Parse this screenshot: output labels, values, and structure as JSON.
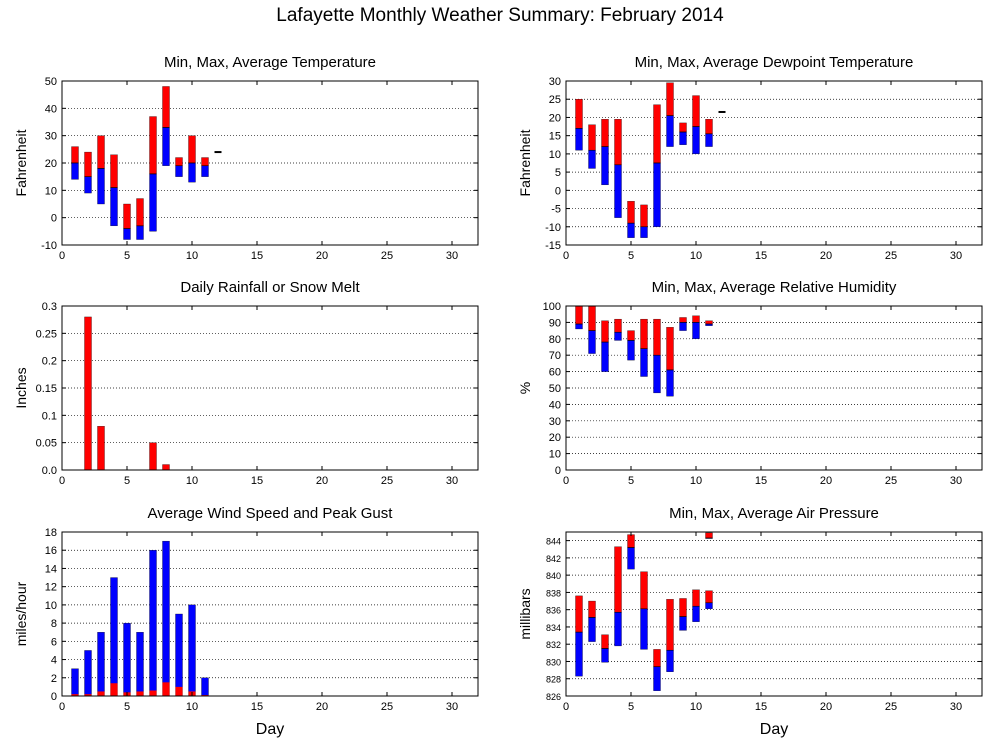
{
  "title": "Lafayette Monthly Weather Summary: February 2014",
  "colors": {
    "max_bar": "#ff0000",
    "min_bar": "#0000ff",
    "grid": "#000000"
  },
  "chart_data": [
    {
      "id": "temperature",
      "type": "bar",
      "title": "Min, Max, Average Temperature",
      "xlabel": "",
      "ylabel": "Fahrenheit",
      "xlim": [
        0,
        32
      ],
      "ylim": [
        -10,
        50
      ],
      "xticks": [
        0,
        5,
        10,
        15,
        20,
        25,
        30
      ],
      "yticks": [
        -10,
        0,
        10,
        20,
        30,
        40,
        50
      ],
      "grid": true,
      "days": [
        {
          "x": 1,
          "min": 14,
          "avg": 20,
          "max": 26
        },
        {
          "x": 2,
          "min": 9,
          "avg": 15,
          "max": 24
        },
        {
          "x": 3,
          "min": 5,
          "avg": 18,
          "max": 30
        },
        {
          "x": 4,
          "min": -3,
          "avg": 11,
          "max": 23
        },
        {
          "x": 5,
          "min": -8,
          "avg": -4,
          "max": 5
        },
        {
          "x": 6,
          "min": -8,
          "avg": -3,
          "max": 7
        },
        {
          "x": 7,
          "min": -5,
          "avg": 16,
          "max": 37
        },
        {
          "x": 8,
          "min": 19,
          "avg": 33,
          "max": 48
        },
        {
          "x": 9,
          "min": 15,
          "avg": 19,
          "max": 22
        },
        {
          "x": 10,
          "min": 13,
          "avg": 20,
          "max": 30
        },
        {
          "x": 11,
          "min": 15,
          "avg": 19,
          "max": 22
        },
        {
          "x": 12,
          "marker": 24
        }
      ]
    },
    {
      "id": "dewpoint",
      "type": "bar",
      "title": "Min, Max, Average Dewpoint Temperature",
      "xlabel": "",
      "ylabel": "Fahrenheit",
      "xlim": [
        0,
        32
      ],
      "ylim": [
        -15,
        30
      ],
      "xticks": [
        0,
        5,
        10,
        15,
        20,
        25,
        30
      ],
      "yticks": [
        -15,
        -10,
        -5,
        0,
        5,
        10,
        15,
        20,
        25,
        30
      ],
      "grid": true,
      "days": [
        {
          "x": 1,
          "min": 11,
          "avg": 17,
          "max": 25
        },
        {
          "x": 2,
          "min": 6,
          "avg": 11,
          "max": 18
        },
        {
          "x": 3,
          "min": 1.5,
          "avg": 12,
          "max": 19.5
        },
        {
          "x": 4,
          "min": -7.5,
          "avg": 7,
          "max": 19.5
        },
        {
          "x": 5,
          "min": -13,
          "avg": -9,
          "max": -3
        },
        {
          "x": 6,
          "min": -13,
          "avg": -10,
          "max": -4
        },
        {
          "x": 7,
          "min": -10,
          "avg": 7.5,
          "max": 23.5
        },
        {
          "x": 8,
          "min": 12,
          "avg": 20.5,
          "max": 29.5
        },
        {
          "x": 9,
          "min": 12.5,
          "avg": 16,
          "max": 18.5
        },
        {
          "x": 10,
          "min": 10,
          "avg": 17.5,
          "max": 26
        },
        {
          "x": 11,
          "min": 12,
          "avg": 15.5,
          "max": 19.5
        },
        {
          "x": 12,
          "marker": 21.5
        }
      ]
    },
    {
      "id": "rainfall",
      "type": "bar",
      "title": "Daily Rainfall or Snow Melt",
      "xlabel": "",
      "ylabel": "Inches",
      "xlim": [
        0,
        32
      ],
      "ylim": [
        0,
        0.3
      ],
      "xticks": [
        0,
        5,
        10,
        15,
        20,
        25,
        30
      ],
      "yticks": [
        0,
        0.05,
        0.1,
        0.15,
        0.2,
        0.25,
        0.3
      ],
      "ytick_labels": [
        "0.0",
        "0.05",
        "0.1",
        "0.15",
        "0.2",
        "0.25",
        "0.3"
      ],
      "grid": true,
      "values": [
        {
          "x": 2,
          "value": 0.28
        },
        {
          "x": 3,
          "value": 0.08
        },
        {
          "x": 7,
          "value": 0.05
        },
        {
          "x": 8,
          "value": 0.01
        }
      ]
    },
    {
      "id": "humidity",
      "type": "bar",
      "title": "Min, Max, Average Relative Humidity",
      "xlabel": "",
      "ylabel": "%",
      "xlim": [
        0,
        32
      ],
      "ylim": [
        0,
        100
      ],
      "xticks": [
        0,
        5,
        10,
        15,
        20,
        25,
        30
      ],
      "yticks": [
        0,
        10,
        20,
        30,
        40,
        50,
        60,
        70,
        80,
        90,
        100
      ],
      "grid": true,
      "days": [
        {
          "x": 1,
          "min": 86,
          "avg": 89,
          "max": 100
        },
        {
          "x": 2,
          "min": 71,
          "avg": 85,
          "max": 100
        },
        {
          "x": 3,
          "min": 60,
          "avg": 78,
          "max": 91
        },
        {
          "x": 4,
          "min": 79,
          "avg": 84,
          "max": 92
        },
        {
          "x": 5,
          "min": 67,
          "avg": 79,
          "max": 85
        },
        {
          "x": 6,
          "min": 57,
          "avg": 74,
          "max": 92
        },
        {
          "x": 7,
          "min": 47,
          "avg": 70,
          "max": 92
        },
        {
          "x": 8,
          "min": 45,
          "avg": 61,
          "max": 87
        },
        {
          "x": 9,
          "min": 85,
          "avg": 90,
          "max": 93
        },
        {
          "x": 10,
          "min": 80,
          "avg": 90,
          "max": 94
        },
        {
          "x": 11,
          "min": 88,
          "avg": 89,
          "max": 91
        }
      ]
    },
    {
      "id": "wind",
      "type": "bar",
      "title": "Average Wind Speed and Peak Gust",
      "xlabel": "Day",
      "ylabel": "miles/hour",
      "xlim": [
        0,
        32
      ],
      "ylim": [
        0,
        18
      ],
      "xticks": [
        0,
        5,
        10,
        15,
        20,
        25,
        30
      ],
      "yticks": [
        0,
        2,
        4,
        6,
        8,
        10,
        12,
        14,
        16,
        18
      ],
      "grid": true,
      "days": [
        {
          "x": 1,
          "avg": 0.2,
          "gust": 3
        },
        {
          "x": 2,
          "avg": 0.2,
          "gust": 5
        },
        {
          "x": 3,
          "avg": 0.5,
          "gust": 7
        },
        {
          "x": 4,
          "avg": 1.4,
          "gust": 13
        },
        {
          "x": 5,
          "avg": 0.4,
          "gust": 8
        },
        {
          "x": 6,
          "avg": 0.5,
          "gust": 7
        },
        {
          "x": 7,
          "avg": 0.6,
          "gust": 16
        },
        {
          "x": 8,
          "avg": 1.5,
          "gust": 17
        },
        {
          "x": 9,
          "avg": 1.0,
          "gust": 9
        },
        {
          "x": 10,
          "avg": 0.5,
          "gust": 10
        },
        {
          "x": 11,
          "avg": 0.1,
          "gust": 2
        }
      ]
    },
    {
      "id": "pressure",
      "type": "bar",
      "title": "Min, Max, Average Air Pressure",
      "xlabel": "Day",
      "ylabel": "millibars",
      "xlim": [
        0,
        32
      ],
      "ylim": [
        826,
        845
      ],
      "xticks": [
        0,
        5,
        10,
        15,
        20,
        25,
        30
      ],
      "yticks": [
        826,
        828,
        830,
        832,
        834,
        836,
        838,
        840,
        842,
        844
      ],
      "grid": true,
      "days": [
        {
          "x": 1,
          "min": 828.3,
          "avg": 833.4,
          "max": 837.6
        },
        {
          "x": 2,
          "min": 832.3,
          "avg": 835.1,
          "max": 837.0
        },
        {
          "x": 3,
          "min": 829.9,
          "avg": 831.5,
          "max": 833.1
        },
        {
          "x": 4,
          "min": 831.8,
          "avg": 835.7,
          "max": 843.3
        },
        {
          "x": 5,
          "min": 840.7,
          "avg": 843.2,
          "max": 844.7
        },
        {
          "x": 6,
          "min": 831.4,
          "avg": 836.1,
          "max": 840.4
        },
        {
          "x": 7,
          "min": 826.6,
          "avg": 829.4,
          "max": 831.4
        },
        {
          "x": 8,
          "min": 828.8,
          "avg": 831.3,
          "max": 837.2
        },
        {
          "x": 9,
          "min": 833.6,
          "avg": 835.2,
          "max": 837.3
        },
        {
          "x": 10,
          "min": 834.6,
          "avg": 836.4,
          "max": 838.3
        },
        {
          "x": 11,
          "min": 836.1,
          "avg": 836.8,
          "max": 838.2
        },
        {
          "x": 11,
          "min": 844.3,
          "avg": 844.3,
          "max": 844.9,
          "max_only": true
        }
      ]
    }
  ]
}
